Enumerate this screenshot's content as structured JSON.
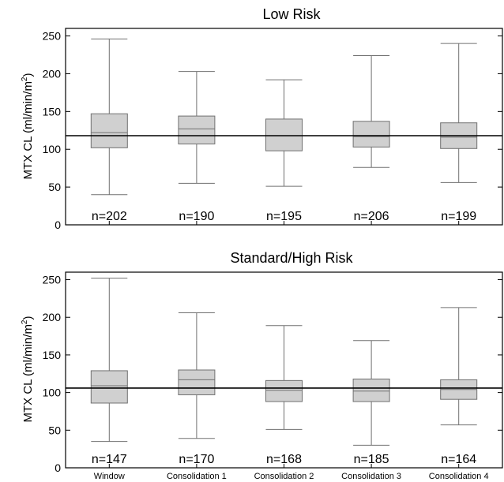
{
  "colors": {
    "box_fill": "#d0d0d0",
    "axis": "#000000",
    "box_stroke": "#707070",
    "ref_line": "#000000"
  },
  "chart_data": [
    {
      "type": "box",
      "title": "Low Risk",
      "ylabel_main": "MTX CL (ml/min/m",
      "ylabel_sup": "2",
      "ylabel_end": ")",
      "ylim": [
        0,
        260
      ],
      "yticks": [
        0,
        50,
        100,
        150,
        200,
        250
      ],
      "grid": false,
      "reference_line": 118,
      "categories": [],
      "boxes": [
        {
          "min": 40,
          "q1": 102,
          "median": 122,
          "q3": 147,
          "max": 246,
          "n_label": "n=202"
        },
        {
          "min": 55,
          "q1": 107,
          "median": 127,
          "q3": 144,
          "max": 203,
          "n_label": "n=190"
        },
        {
          "min": 51,
          "q1": 98,
          "median": 118,
          "q3": 140,
          "max": 192,
          "n_label": "n=195"
        },
        {
          "min": 76,
          "q1": 103,
          "median": 117,
          "q3": 137,
          "max": 224,
          "n_label": "n=206"
        },
        {
          "min": 56,
          "q1": 101,
          "median": 116,
          "q3": 135,
          "max": 240,
          "n_label": "n=199"
        }
      ]
    },
    {
      "type": "box",
      "title": "Standard/High Risk",
      "ylabel_main": "MTX CL (ml/min/m",
      "ylabel_sup": "2",
      "ylabel_end": ")",
      "ylim": [
        0,
        260
      ],
      "yticks": [
        0,
        50,
        100,
        150,
        200,
        250
      ],
      "grid": false,
      "reference_line": 106,
      "categories": [
        "Window",
        "Consolidation 1",
        "Consolidation 2",
        "Consolidation 3",
        "Consolidation 4"
      ],
      "boxes": [
        {
          "min": 35,
          "q1": 86,
          "median": 109,
          "q3": 129,
          "max": 252,
          "n_label": "n=147"
        },
        {
          "min": 39,
          "q1": 97,
          "median": 117,
          "q3": 130,
          "max": 206,
          "n_label": "n=170"
        },
        {
          "min": 51,
          "q1": 88,
          "median": 103,
          "q3": 116,
          "max": 189,
          "n_label": "n=168"
        },
        {
          "min": 30,
          "q1": 88,
          "median": 102,
          "q3": 118,
          "max": 169,
          "n_label": "n=185"
        },
        {
          "min": 57,
          "q1": 91,
          "median": 104,
          "q3": 117,
          "max": 213,
          "n_label": "n=164"
        }
      ]
    }
  ]
}
